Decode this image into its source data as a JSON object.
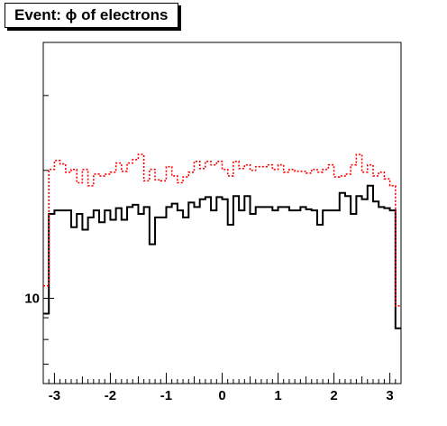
{
  "chart_data": {
    "type": "line",
    "title": "Event: ϕ of electrons",
    "xlabel": "",
    "ylabel": "",
    "xlim": [
      -3.2,
      3.2
    ],
    "ylim": [
      6.3,
      40
    ],
    "yscale": "log",
    "grid": false,
    "legend": "none",
    "x_ticks": [
      -3,
      -2,
      -1,
      0,
      1,
      2,
      3
    ],
    "x_tick_labels": [
      "-3",
      "-2",
      "-1",
      "0",
      "1",
      "2",
      "3"
    ],
    "y_ticks": [
      10
    ],
    "y_tick_labels": [
      "10"
    ],
    "bins": 64,
    "series": [
      {
        "style": "solid",
        "color": "#000000",
        "values": [
          9.2,
          15.8,
          16.1,
          16.1,
          16.1,
          14.7,
          15.8,
          14.5,
          15.5,
          16.1,
          15.1,
          16.1,
          15.3,
          16.3,
          15.3,
          16.4,
          16.6,
          15.8,
          16.4,
          13.4,
          15.5,
          15.5,
          16.4,
          16.7,
          16.1,
          15.5,
          16.8,
          16.4,
          17.1,
          17.3,
          16.1,
          17.3,
          17.1,
          14.9,
          17.4,
          16.1,
          17.4,
          15.8,
          16.4,
          16.4,
          16.4,
          16.1,
          16.4,
          16.4,
          16.1,
          16.1,
          16.4,
          16.2,
          16.1,
          14.9,
          16.1,
          16.1,
          16.1,
          17.7,
          17.4,
          15.8,
          17.4,
          17.1,
          18.4,
          16.9,
          16.4,
          16.3,
          16.1,
          8.5
        ]
      },
      {
        "style": "dotted",
        "color": "#ff0000",
        "values": [
          10.7,
          20.1,
          21.1,
          20.7,
          19.8,
          20.1,
          18.7,
          20.1,
          18.4,
          19.6,
          19.4,
          19.6,
          19.8,
          20.8,
          19.9,
          20.8,
          21.2,
          21.8,
          18.9,
          20.1,
          19.0,
          18.9,
          20.4,
          19.4,
          18.7,
          19.3,
          19.8,
          21.0,
          20.2,
          21.0,
          20.6,
          21.0,
          20.1,
          19.4,
          21.0,
          20.2,
          20.6,
          20.0,
          20.4,
          20.4,
          20.6,
          20.1,
          20.6,
          19.8,
          20.1,
          19.9,
          19.9,
          19.7,
          20.1,
          19.8,
          20.1,
          20.6,
          19.3,
          19.4,
          19.6,
          20.6,
          21.8,
          19.8,
          20.6,
          19.4,
          19.8,
          19.1,
          18.4,
          9.6
        ]
      }
    ]
  }
}
